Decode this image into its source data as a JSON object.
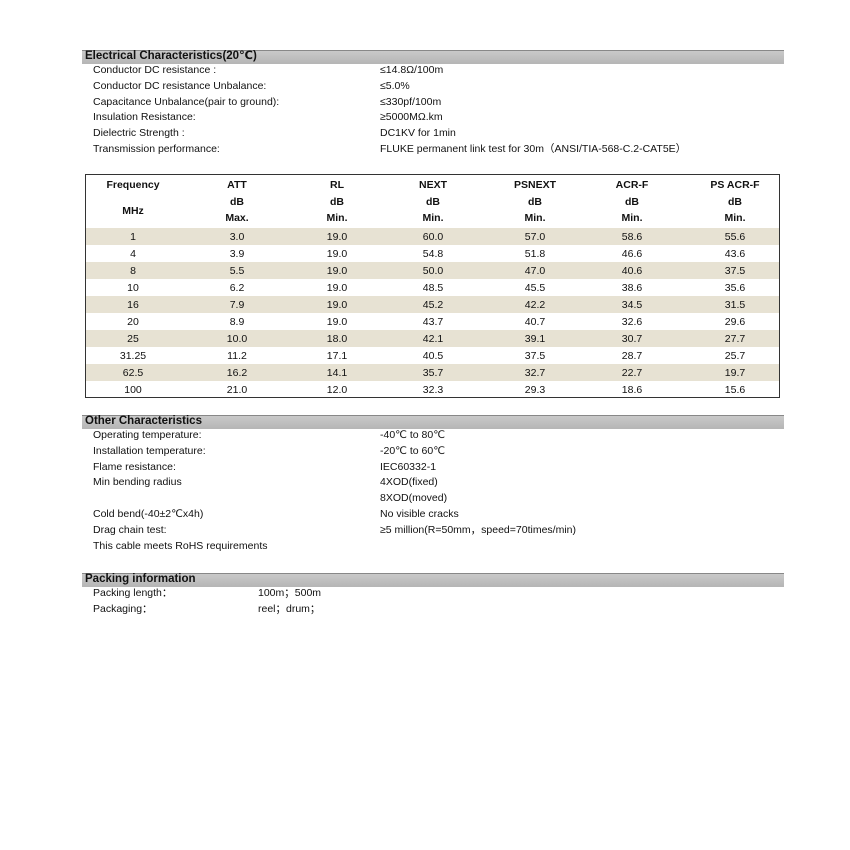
{
  "electrical": {
    "title": "Electrical Characteristics(20℃)",
    "rows": [
      {
        "label": "Conductor DC resistance :",
        "value": "≤14.8Ω/100m"
      },
      {
        "label": "Conductor DC resistance Unbalance:",
        "value": "≤5.0%"
      },
      {
        "label": "Capacitance Unbalance(pair to ground):",
        "value": "≤330pf/100m"
      },
      {
        "label": "Insulation Resistance:",
        "value": "≥5000MΩ.km"
      },
      {
        "label": "Dielectric Strength :",
        "value": "DC1KV for 1min"
      },
      {
        "label": "Transmission performance:",
        "value": "FLUKE permanent link test for 30m（ANSI/TIA-568-C.2-CAT5E）"
      }
    ]
  },
  "table": {
    "header": {
      "names": [
        "Frequency",
        "ATT",
        "RL",
        "NEXT",
        "PSNEXT",
        "ACR-F",
        "PS ACR-F"
      ],
      "frequency_unit": "MHz",
      "units": [
        "dB",
        "dB",
        "dB",
        "dB",
        "dB",
        "dB"
      ],
      "limits": [
        "Max.",
        "Min.",
        "Min.",
        "Min.",
        "Min.",
        "Min."
      ]
    },
    "rows": [
      [
        "1",
        "3.0",
        "19.0",
        "60.0",
        "57.0",
        "58.6",
        "55.6"
      ],
      [
        "4",
        "3.9",
        "19.0",
        "54.8",
        "51.8",
        "46.6",
        "43.6"
      ],
      [
        "8",
        "5.5",
        "19.0",
        "50.0",
        "47.0",
        "40.6",
        "37.5"
      ],
      [
        "10",
        "6.2",
        "19.0",
        "48.5",
        "45.5",
        "38.6",
        "35.6"
      ],
      [
        "16",
        "7.9",
        "19.0",
        "45.2",
        "42.2",
        "34.5",
        "31.5"
      ],
      [
        "20",
        "8.9",
        "19.0",
        "43.7",
        "40.7",
        "32.6",
        "29.6"
      ],
      [
        "25",
        "10.0",
        "18.0",
        "42.1",
        "39.1",
        "30.7",
        "27.7"
      ],
      [
        "31.25",
        "11.2",
        "17.1",
        "40.5",
        "37.5",
        "28.7",
        "25.7"
      ],
      [
        "62.5",
        "16.2",
        "14.1",
        "35.7",
        "32.7",
        "22.7",
        "19.7"
      ],
      [
        "100",
        "21.0",
        "12.0",
        "32.3",
        "29.3",
        "18.6",
        "15.6"
      ]
    ]
  },
  "other": {
    "title": "Other Characteristics",
    "rows": [
      {
        "label": "Operating temperature:",
        "value": "-40℃  to 80℃"
      },
      {
        "label": "Installation temperature:",
        "value": "-20℃  to 60℃"
      },
      {
        "label": "Flame resistance:",
        "value": "IEC60332-1"
      },
      {
        "label": "Min bending radius",
        "value": "4XOD(fixed)"
      },
      {
        "value": "8XOD(moved)"
      },
      {
        "label": "Cold bend(-40±2℃x4h)",
        "value": "No visible cracks"
      },
      {
        "label": "Drag chain test:",
        "value": "≥5 million(R=50mm，speed=70times/min)"
      },
      {
        "label": "This cable meets RoHS requirements"
      }
    ]
  },
  "packing": {
    "title": "Packing information",
    "rows": [
      {
        "label": "Packing length：",
        "value": "100m；500m"
      },
      {
        "label": "Packaging：",
        "value": "reel；drum；"
      }
    ]
  }
}
